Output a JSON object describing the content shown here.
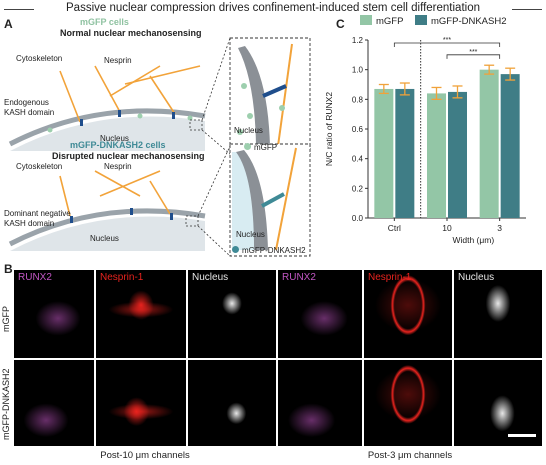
{
  "figure_title": "Passive nuclear compression drives confinement-induced stem cell differentiation",
  "panel_a": {
    "label": "A",
    "top_cell_type": "mGFP cells",
    "top_heading": "Normal nuclear mechanosensing",
    "top_labels": {
      "cytoskeleton": "Cytoskeleton",
      "nesprin": "Nesprin",
      "kash": "Endogenous\nKASH domain",
      "nucleus": "Nucleus",
      "zoom_nucleus": "Nucleus",
      "legend": "mGFP"
    },
    "bottom_cell_type": "mGFP-DNKASH2 cells",
    "bottom_heading": "Disrupted nuclear mechanosensing",
    "bottom_labels": {
      "cytoskeleton": "Cytoskeleton",
      "nesprin": "Nesprin",
      "kash": "Dominant negative\nKASH domain",
      "nucleus": "Nucleus",
      "zoom_nucleus": "Nucleus",
      "legend": "mGFP-DNKASH2"
    }
  },
  "panel_b": {
    "label": "B",
    "channels": [
      "RUNX2",
      "Nesprin-1",
      "Nucleus",
      "RUNX2",
      "Nesprin-1",
      "Nucleus"
    ],
    "rows": [
      "mGFP",
      "mGFP-DNKASH2"
    ],
    "groups": [
      "Post-10 μm channels",
      "Post-3 μm channels"
    ],
    "colors": {
      "runx2": "#c257c4",
      "nesprin": "#e8231e",
      "nucleus": "#e8e8e8"
    }
  },
  "panel_c": {
    "label": "C"
  },
  "chart_data": {
    "type": "bar",
    "categories": [
      "Ctrl",
      "10",
      "3"
    ],
    "series": [
      {
        "name": "mGFP",
        "color": "#93c6a6",
        "values": [
          0.87,
          0.84,
          1.0
        ],
        "errors": [
          0.03,
          0.04,
          0.03
        ]
      },
      {
        "name": "mGFP-DNKASH2",
        "color": "#3f7d86",
        "values": [
          0.87,
          0.85,
          0.97
        ],
        "errors": [
          0.04,
          0.04,
          0.04
        ]
      }
    ],
    "xlabel": "Width (μm)",
    "ylabel": "N/C ratio of RUNX2",
    "ylim": [
      0,
      1.2
    ],
    "yticks": [
      "0.0",
      "0.2",
      "0.4",
      "0.6",
      "0.8",
      "1.0",
      "1.2"
    ],
    "significance": [
      "***",
      "***"
    ],
    "error_color": "#f0a23a"
  }
}
